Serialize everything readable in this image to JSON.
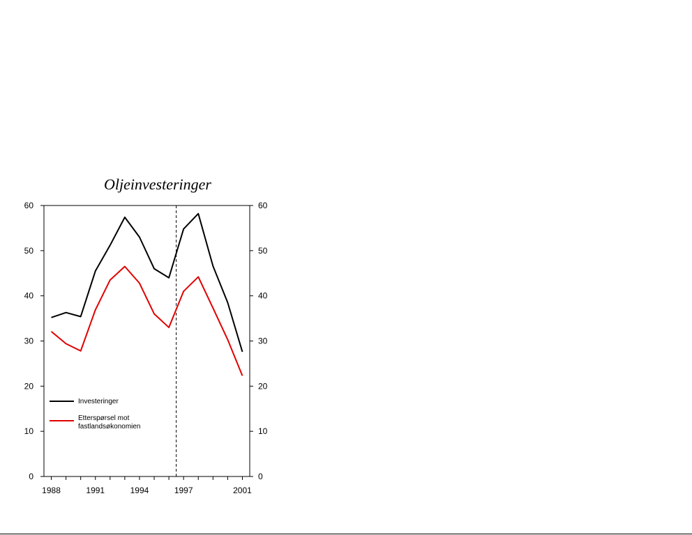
{
  "chart_data": {
    "type": "line",
    "title": "Oljeinvesteringer",
    "x": [
      1988,
      1989,
      1990,
      1991,
      1992,
      1993,
      1994,
      1995,
      1996,
      1997,
      1998,
      1999,
      2000,
      2001
    ],
    "xticks": [
      "1988",
      "1991",
      "1994",
      "1997",
      "2001"
    ],
    "xtick_values": [
      1988,
      1991,
      1994,
      1997,
      2001
    ],
    "xlim": [
      1987.5,
      2001.5
    ],
    "ylim": [
      0,
      60
    ],
    "yticks": [
      "0",
      "10",
      "20",
      "30",
      "40",
      "50",
      "60"
    ],
    "ytick_values": [
      0,
      10,
      20,
      30,
      40,
      50,
      60
    ],
    "secondary_axis": true,
    "vline_x": 1996.5,
    "legend_position": "lower-left",
    "grid": false,
    "series": [
      {
        "name": "Investeringer",
        "color": "#000000",
        "values": [
          35.2,
          36.3,
          35.4,
          45.5,
          51.2,
          57.4,
          53.0,
          46.0,
          44.0,
          54.8,
          58.2,
          46.6,
          38.5,
          27.6
        ]
      },
      {
        "name": "Etterspørsel mot fastlandsøkonomien",
        "name_lines": [
          "Etterspørsel mot",
          "fastlandsøkonomien"
        ],
        "color": "#e00000",
        "values": [
          32.1,
          29.4,
          27.8,
          36.9,
          43.5,
          46.5,
          42.8,
          36.0,
          33.0,
          41.0,
          44.2,
          37.3,
          30.3,
          22.3
        ]
      }
    ]
  }
}
